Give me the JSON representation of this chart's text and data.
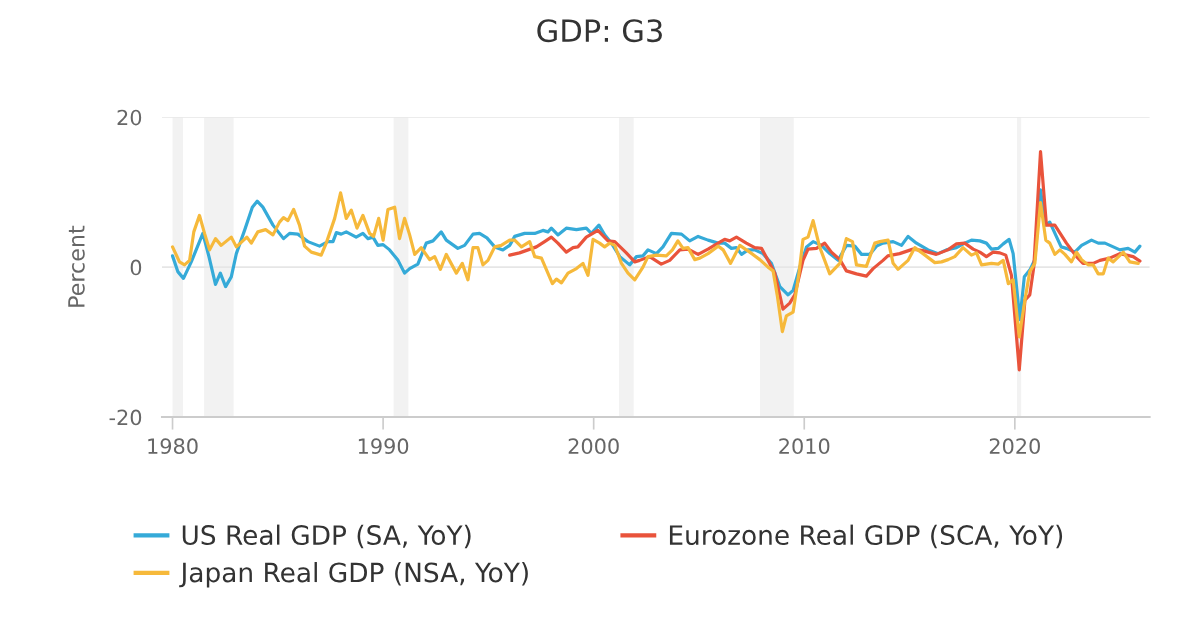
{
  "chart_data": {
    "type": "line",
    "title": "GDP: G3",
    "ylabel": "Percent",
    "xlim": [
      1979.5,
      2026.4
    ],
    "xticks": [
      1980,
      1990,
      2000,
      2010,
      2020
    ],
    "ylim": [
      -20,
      20
    ],
    "yticks": [
      -20,
      0,
      20
    ],
    "grid": "y",
    "legend": "bottom",
    "bands": [
      {
        "axis": "x",
        "from": 1980.0,
        "to": 1980.5,
        "color": "#f2f2f2"
      },
      {
        "axis": "x",
        "from": 1981.5,
        "to": 1982.9,
        "color": "#f2f2f2"
      },
      {
        "axis": "x",
        "from": 1990.5,
        "to": 1991.2,
        "color": "#f2f2f2"
      },
      {
        "axis": "x",
        "from": 2001.2,
        "to": 2001.9,
        "color": "#f2f2f2"
      },
      {
        "axis": "x",
        "from": 2007.9,
        "to": 2009.5,
        "color": "#f2f2f2"
      },
      {
        "axis": "x",
        "from": 2020.1,
        "to": 2020.3,
        "color": "#f2f2f2"
      }
    ],
    "series": [
      {
        "name": "US Real GDP (SA, YoY)",
        "color": "#35aad8",
        "x": [
          1980.0,
          1980.25,
          1980.52,
          1980.89,
          1981.44,
          1981.73,
          1982.04,
          1982.27,
          1982.52,
          1982.79,
          1983.03,
          1983.42,
          1983.79,
          1984.02,
          1984.29,
          1984.77,
          1985.27,
          1985.56,
          1985.95,
          1986.43,
          1986.98,
          1987.38,
          1987.62,
          1987.78,
          1988.01,
          1988.25,
          1988.72,
          1989.04,
          1989.28,
          1989.52,
          1989.75,
          1990.0,
          1990.31,
          1990.71,
          1991.02,
          1991.26,
          1991.65,
          1992.05,
          1992.37,
          1992.76,
          1993.0,
          1993.55,
          1993.87,
          1994.27,
          1994.58,
          1994.93,
          1995.3,
          1995.69,
          1996.01,
          1996.25,
          1996.72,
          1997.2,
          1997.59,
          1997.83,
          1997.99,
          1998.3,
          1998.7,
          1999.18,
          1999.65,
          1999.89,
          2000.25,
          2000.52,
          2000.84,
          2001.24,
          2001.71,
          2002.03,
          2002.34,
          2002.58,
          2002.98,
          2003.29,
          2003.69,
          2004.17,
          2004.56,
          2004.96,
          2005.43,
          2005.91,
          2006.22,
          2006.54,
          2006.78,
          2007.02,
          2007.33,
          2007.65,
          2008.04,
          2008.44,
          2008.84,
          2009.23,
          2009.47,
          2009.79,
          2010.11,
          2010.42,
          2010.82,
          2011.21,
          2011.61,
          2012.0,
          2012.4,
          2012.72,
          2013.11,
          2013.43,
          2013.74,
          2014.22,
          2014.62,
          2014.93,
          2015.33,
          2015.88,
          2016.36,
          2016.75,
          2017.23,
          2017.62,
          2017.94,
          2018.34,
          2018.65,
          2018.89,
          2019.21,
          2019.45,
          2019.73,
          2019.92,
          2020.24,
          2020.45,
          2020.71,
          2020.95,
          2021.22,
          2021.45,
          2021.66,
          2022.2,
          2022.45,
          2022.85,
          2023.17,
          2023.64,
          2023.96,
          2024.28,
          2024.99,
          2025.38,
          2025.7,
          2025.94
        ],
        "values": [
          1.5,
          -0.6,
          -1.5,
          0.7,
          4.5,
          1.4,
          -2.3,
          -0.8,
          -2.6,
          -1.3,
          1.8,
          4.9,
          8.0,
          8.8,
          8.0,
          5.6,
          3.8,
          4.5,
          4.4,
          3.4,
          2.8,
          3.4,
          3.4,
          4.6,
          4.4,
          4.7,
          4.0,
          4.5,
          3.8,
          4.0,
          2.9,
          3.0,
          2.3,
          0.9,
          -0.8,
          -0.2,
          0.4,
          3.2,
          3.5,
          4.7,
          3.6,
          2.5,
          2.9,
          4.4,
          4.5,
          3.9,
          2.7,
          2.3,
          2.9,
          4.1,
          4.5,
          4.5,
          4.9,
          4.7,
          5.2,
          4.3,
          5.2,
          5.0,
          5.2,
          4.5,
          5.6,
          4.3,
          3.2,
          1.4,
          0.3,
          1.4,
          1.5,
          2.3,
          1.8,
          2.7,
          4.5,
          4.4,
          3.5,
          4.1,
          3.6,
          3.2,
          3.2,
          2.5,
          2.6,
          1.7,
          2.3,
          2.3,
          1.8,
          0.5,
          -2.6,
          -3.7,
          -3.1,
          0.0,
          2.7,
          3.4,
          2.9,
          1.8,
          0.9,
          2.9,
          2.8,
          1.7,
          1.7,
          2.8,
          3.2,
          3.4,
          2.9,
          4.1,
          3.2,
          2.3,
          1.8,
          2.3,
          2.6,
          3.2,
          3.6,
          3.5,
          3.2,
          2.4,
          2.5,
          3.1,
          3.7,
          1.8,
          -7.0,
          -1.3,
          -0.4,
          1.0,
          10.3,
          5.6,
          6.0,
          2.7,
          2.5,
          2.0,
          2.9,
          3.6,
          3.2,
          3.2,
          2.3,
          2.5,
          2.0,
          2.8
        ]
      },
      {
        "name": "Eurozone Real GDP (SCA, YoY)",
        "color": "#e9533b",
        "x": [
          1996.01,
          1996.48,
          1996.88,
          1997.28,
          1997.67,
          1997.99,
          1998.3,
          1998.7,
          1999.02,
          1999.25,
          1999.65,
          2000.2,
          2000.68,
          2001.0,
          2001.55,
          2001.95,
          2002.18,
          2002.66,
          2003.21,
          2003.61,
          2004.09,
          2004.48,
          2004.96,
          2005.43,
          2005.91,
          2006.22,
          2006.46,
          2006.78,
          2007.25,
          2007.65,
          2007.97,
          2008.28,
          2008.6,
          2008.99,
          2009.31,
          2009.55,
          2009.94,
          2010.18,
          2010.58,
          2010.97,
          2011.29,
          2011.69,
          2012.0,
          2012.48,
          2012.95,
          2013.27,
          2013.74,
          2013.97,
          2014.53,
          2015.16,
          2015.63,
          2016.27,
          2016.82,
          2017.23,
          2017.62,
          2018.02,
          2018.34,
          2018.65,
          2018.97,
          2019.29,
          2019.57,
          2019.84,
          2020.21,
          2020.48,
          2020.71,
          2020.9,
          2021.22,
          2021.5,
          2021.9,
          2022.45,
          2022.93,
          2023.24,
          2023.72,
          2024.04,
          2024.51,
          2024.99,
          2025.62,
          2025.94
        ],
        "values": [
          1.6,
          1.9,
          2.3,
          2.7,
          3.4,
          4.0,
          3.2,
          2.0,
          2.6,
          2.7,
          4.0,
          4.9,
          3.5,
          3.4,
          1.9,
          0.7,
          0.9,
          1.4,
          0.4,
          0.9,
          2.3,
          2.4,
          1.7,
          2.4,
          3.2,
          3.7,
          3.5,
          4.0,
          3.2,
          2.6,
          2.5,
          0.9,
          -0.8,
          -5.6,
          -4.8,
          -3.7,
          0.9,
          2.4,
          2.5,
          3.2,
          2.0,
          1.0,
          -0.5,
          -0.9,
          -1.2,
          -0.2,
          0.9,
          1.5,
          1.8,
          2.4,
          2.2,
          1.7,
          2.3,
          3.1,
          3.2,
          2.4,
          2.0,
          1.4,
          2.0,
          1.9,
          1.6,
          -1.1,
          -13.7,
          -4.4,
          -3.7,
          0.0,
          15.4,
          5.6,
          5.6,
          3.2,
          1.4,
          0.5,
          0.5,
          0.9,
          1.2,
          1.8,
          1.4,
          0.8
        ]
      },
      {
        "name": "Japan Real GDP (NSA, YoY)",
        "color": "#f6b93b",
        "x": [
          1980.0,
          1980.33,
          1980.57,
          1980.81,
          1981.01,
          1981.28,
          1981.52,
          1981.76,
          1982.04,
          1982.31,
          1982.79,
          1983.03,
          1983.53,
          1983.74,
          1984.05,
          1984.42,
          1984.77,
          1985.08,
          1985.27,
          1985.48,
          1985.75,
          1986.03,
          1986.27,
          1986.59,
          1987.06,
          1987.3,
          1987.7,
          1987.98,
          1988.25,
          1988.49,
          1988.76,
          1989.04,
          1989.36,
          1989.55,
          1989.79,
          1990.0,
          1990.23,
          1990.55,
          1990.78,
          1991.02,
          1991.26,
          1991.5,
          1991.81,
          1992.21,
          1992.45,
          1992.72,
          1993.0,
          1993.48,
          1993.76,
          1994.03,
          1994.27,
          1994.5,
          1994.74,
          1994.98,
          1995.3,
          1995.61,
          1996.01,
          1996.25,
          1996.57,
          1996.96,
          1997.2,
          1997.52,
          1998.04,
          1998.23,
          1998.47,
          1998.78,
          1999.18,
          1999.49,
          1999.73,
          1999.97,
          2000.28,
          2000.52,
          2000.76,
          2001.0,
          2001.32,
          2001.63,
          2001.95,
          2002.34,
          2002.58,
          2002.98,
          2003.45,
          2003.74,
          2004.0,
          2004.24,
          2004.48,
          2004.8,
          2005.04,
          2005.43,
          2005.91,
          2006.15,
          2006.5,
          2006.94,
          2007.41,
          2007.89,
          2008.28,
          2008.52,
          2008.73,
          2008.96,
          2009.15,
          2009.47,
          2009.75,
          2009.94,
          2010.18,
          2010.42,
          2010.73,
          2011.21,
          2011.69,
          2012.0,
          2012.29,
          2012.48,
          2012.95,
          2013.35,
          2013.59,
          2013.98,
          2014.22,
          2014.45,
          2014.93,
          2015.25,
          2015.64,
          2016.2,
          2016.52,
          2016.83,
          2017.15,
          2017.54,
          2017.94,
          2018.18,
          2018.42,
          2018.89,
          2019.21,
          2019.45,
          2019.69,
          2019.92,
          2020.21,
          2020.48,
          2020.71,
          2020.95,
          2021.22,
          2021.47,
          2021.66,
          2021.9,
          2022.14,
          2022.38,
          2022.69,
          2022.93,
          2023.17,
          2023.48,
          2023.72,
          2023.96,
          2024.2,
          2024.43,
          2024.67,
          2025.15,
          2025.46,
          2025.86
        ],
        "values": [
          2.7,
          0.7,
          0.3,
          0.9,
          4.7,
          6.9,
          4.5,
          2.3,
          3.8,
          2.9,
          4.0,
          2.7,
          4.0,
          3.2,
          4.7,
          5.0,
          4.3,
          6.0,
          6.6,
          6.2,
          7.7,
          5.6,
          2.8,
          2.0,
          1.6,
          3.2,
          6.5,
          9.9,
          6.5,
          7.6,
          5.2,
          6.9,
          4.5,
          4.1,
          6.5,
          3.6,
          7.7,
          8.0,
          3.8,
          6.5,
          4.3,
          1.7,
          2.6,
          1.0,
          1.4,
          -0.3,
          1.7,
          -0.8,
          0.5,
          -1.7,
          2.6,
          2.6,
          0.3,
          0.9,
          2.7,
          2.9,
          3.6,
          3.6,
          2.7,
          3.4,
          1.4,
          1.2,
          -2.2,
          -1.6,
          -2.1,
          -0.8,
          -0.2,
          0.5,
          -1.1,
          3.7,
          3.2,
          2.7,
          3.2,
          2.9,
          0.5,
          -0.8,
          -1.7,
          0.0,
          1.4,
          1.6,
          1.5,
          2.3,
          3.5,
          2.5,
          2.6,
          1.0,
          1.2,
          1.8,
          2.8,
          2.3,
          0.5,
          2.9,
          2.0,
          1.0,
          0.0,
          -0.5,
          -4.0,
          -8.6,
          -6.5,
          -6.0,
          -0.8,
          3.7,
          4.0,
          6.2,
          2.7,
          -0.9,
          0.5,
          3.8,
          3.4,
          0.3,
          0.1,
          3.2,
          3.4,
          3.6,
          0.5,
          -0.3,
          0.9,
          2.6,
          1.8,
          0.6,
          0.7,
          1.0,
          1.4,
          2.6,
          1.6,
          1.9,
          0.3,
          0.5,
          0.4,
          0.9,
          -2.2,
          -1.7,
          -9.3,
          -4.4,
          -0.6,
          0.5,
          8.6,
          3.6,
          3.2,
          1.7,
          2.3,
          1.7,
          0.7,
          2.0,
          1.0,
          0.3,
          0.3,
          -0.9,
          -0.9,
          1.2,
          0.7,
          2.0,
          0.7,
          0.5
        ]
      }
    ]
  }
}
